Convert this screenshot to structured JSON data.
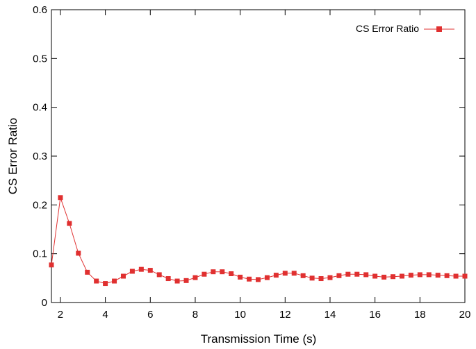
{
  "chart_data": {
    "type": "line",
    "title": "",
    "xlabel": "Transmission Time (s)",
    "ylabel": "CS Error Ratio",
    "xlim": [
      1.6,
      20
    ],
    "ylim": [
      0,
      0.6
    ],
    "x_ticks": [
      2,
      4,
      6,
      8,
      10,
      12,
      14,
      16,
      18,
      20
    ],
    "y_ticks": [
      0,
      0.1,
      0.2,
      0.3,
      0.4,
      0.5,
      0.6
    ],
    "x_tick_labels": [
      "2",
      "4",
      "6",
      "8",
      "10",
      "12",
      "14",
      "16",
      "18",
      "20"
    ],
    "y_tick_labels": [
      "0",
      "0.1",
      "0.2",
      "0.3",
      "0.4",
      "0.5",
      "0.6"
    ],
    "grid": false,
    "legend_position": "top-right",
    "series": [
      {
        "name": "CS Error Ratio",
        "color": "#e03030",
        "marker": "square",
        "x": [
          1.6,
          2.0,
          2.4,
          2.8,
          3.2,
          3.6,
          4.0,
          4.4,
          4.8,
          5.2,
          5.6,
          6.0,
          6.4,
          6.8,
          7.2,
          7.6,
          8.0,
          8.4,
          8.8,
          9.2,
          9.6,
          10.0,
          10.4,
          10.8,
          11.2,
          11.6,
          12.0,
          12.4,
          12.8,
          13.2,
          13.6,
          14.0,
          14.4,
          14.8,
          15.2,
          15.6,
          16.0,
          16.4,
          16.8,
          17.2,
          17.6,
          18.0,
          18.4,
          18.8,
          19.2,
          19.6,
          20.0
        ],
        "y": [
          0.077,
          0.215,
          0.162,
          0.101,
          0.062,
          0.044,
          0.039,
          0.044,
          0.054,
          0.064,
          0.068,
          0.066,
          0.057,
          0.049,
          0.044,
          0.045,
          0.051,
          0.058,
          0.063,
          0.063,
          0.059,
          0.052,
          0.048,
          0.047,
          0.051,
          0.056,
          0.06,
          0.06,
          0.055,
          0.05,
          0.049,
          0.051,
          0.055,
          0.058,
          0.058,
          0.057,
          0.054,
          0.052,
          0.053,
          0.054,
          0.056,
          0.057,
          0.057,
          0.056,
          0.055,
          0.054,
          0.054
        ]
      }
    ]
  }
}
